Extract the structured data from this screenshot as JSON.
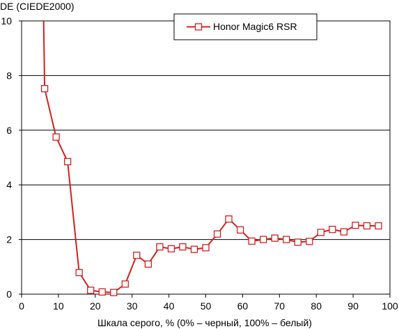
{
  "chart_data": {
    "type": "line",
    "ylabel": "DE (CIEDE2000)",
    "xlabel": "Шкала серого, % (0% – черный, 100% – белый)",
    "xlim": [
      0,
      100
    ],
    "ylim": [
      0,
      10
    ],
    "x_ticks": [
      0,
      10,
      20,
      30,
      40,
      50,
      60,
      70,
      80,
      90,
      100
    ],
    "y_ticks": [
      0,
      2,
      4,
      6,
      8,
      10
    ],
    "x_tick_labels": [
      "0",
      "10",
      "20",
      "30",
      "40",
      "50",
      "60",
      "70",
      "80",
      "90",
      "100"
    ],
    "y_tick_labels": [
      "0",
      "2",
      "4",
      "6",
      "8",
      "10"
    ],
    "grid": "horizontal",
    "legend_position": "top-center",
    "series": [
      {
        "name": "Honor Magic6 RSR",
        "color": "#d42020",
        "marker": "square-open",
        "points": [
          {
            "x": 6.0,
            "y": 10.0,
            "marker": false
          },
          {
            "x": 6.25,
            "y": 7.52
          },
          {
            "x": 9.38,
            "y": 5.75
          },
          {
            "x": 12.5,
            "y": 4.85
          },
          {
            "x": 15.63,
            "y": 0.79
          },
          {
            "x": 18.75,
            "y": 0.14
          },
          {
            "x": 21.88,
            "y": 0.08
          },
          {
            "x": 25.0,
            "y": 0.06
          },
          {
            "x": 28.13,
            "y": 0.37
          },
          {
            "x": 31.25,
            "y": 1.42
          },
          {
            "x": 34.38,
            "y": 1.1
          },
          {
            "x": 37.5,
            "y": 1.73
          },
          {
            "x": 40.63,
            "y": 1.66
          },
          {
            "x": 43.75,
            "y": 1.73
          },
          {
            "x": 46.88,
            "y": 1.64
          },
          {
            "x": 50.0,
            "y": 1.7
          },
          {
            "x": 53.13,
            "y": 2.2
          },
          {
            "x": 56.25,
            "y": 2.75
          },
          {
            "x": 59.38,
            "y": 2.35
          },
          {
            "x": 62.5,
            "y": 1.94
          },
          {
            "x": 65.63,
            "y": 2.0
          },
          {
            "x": 68.75,
            "y": 2.05
          },
          {
            "x": 71.88,
            "y": 2.0
          },
          {
            "x": 75.0,
            "y": 1.9
          },
          {
            "x": 78.13,
            "y": 1.93
          },
          {
            "x": 81.25,
            "y": 2.26
          },
          {
            "x": 84.38,
            "y": 2.37
          },
          {
            "x": 87.5,
            "y": 2.28
          },
          {
            "x": 90.63,
            "y": 2.52
          },
          {
            "x": 93.75,
            "y": 2.5
          },
          {
            "x": 96.88,
            "y": 2.5
          }
        ]
      }
    ]
  }
}
